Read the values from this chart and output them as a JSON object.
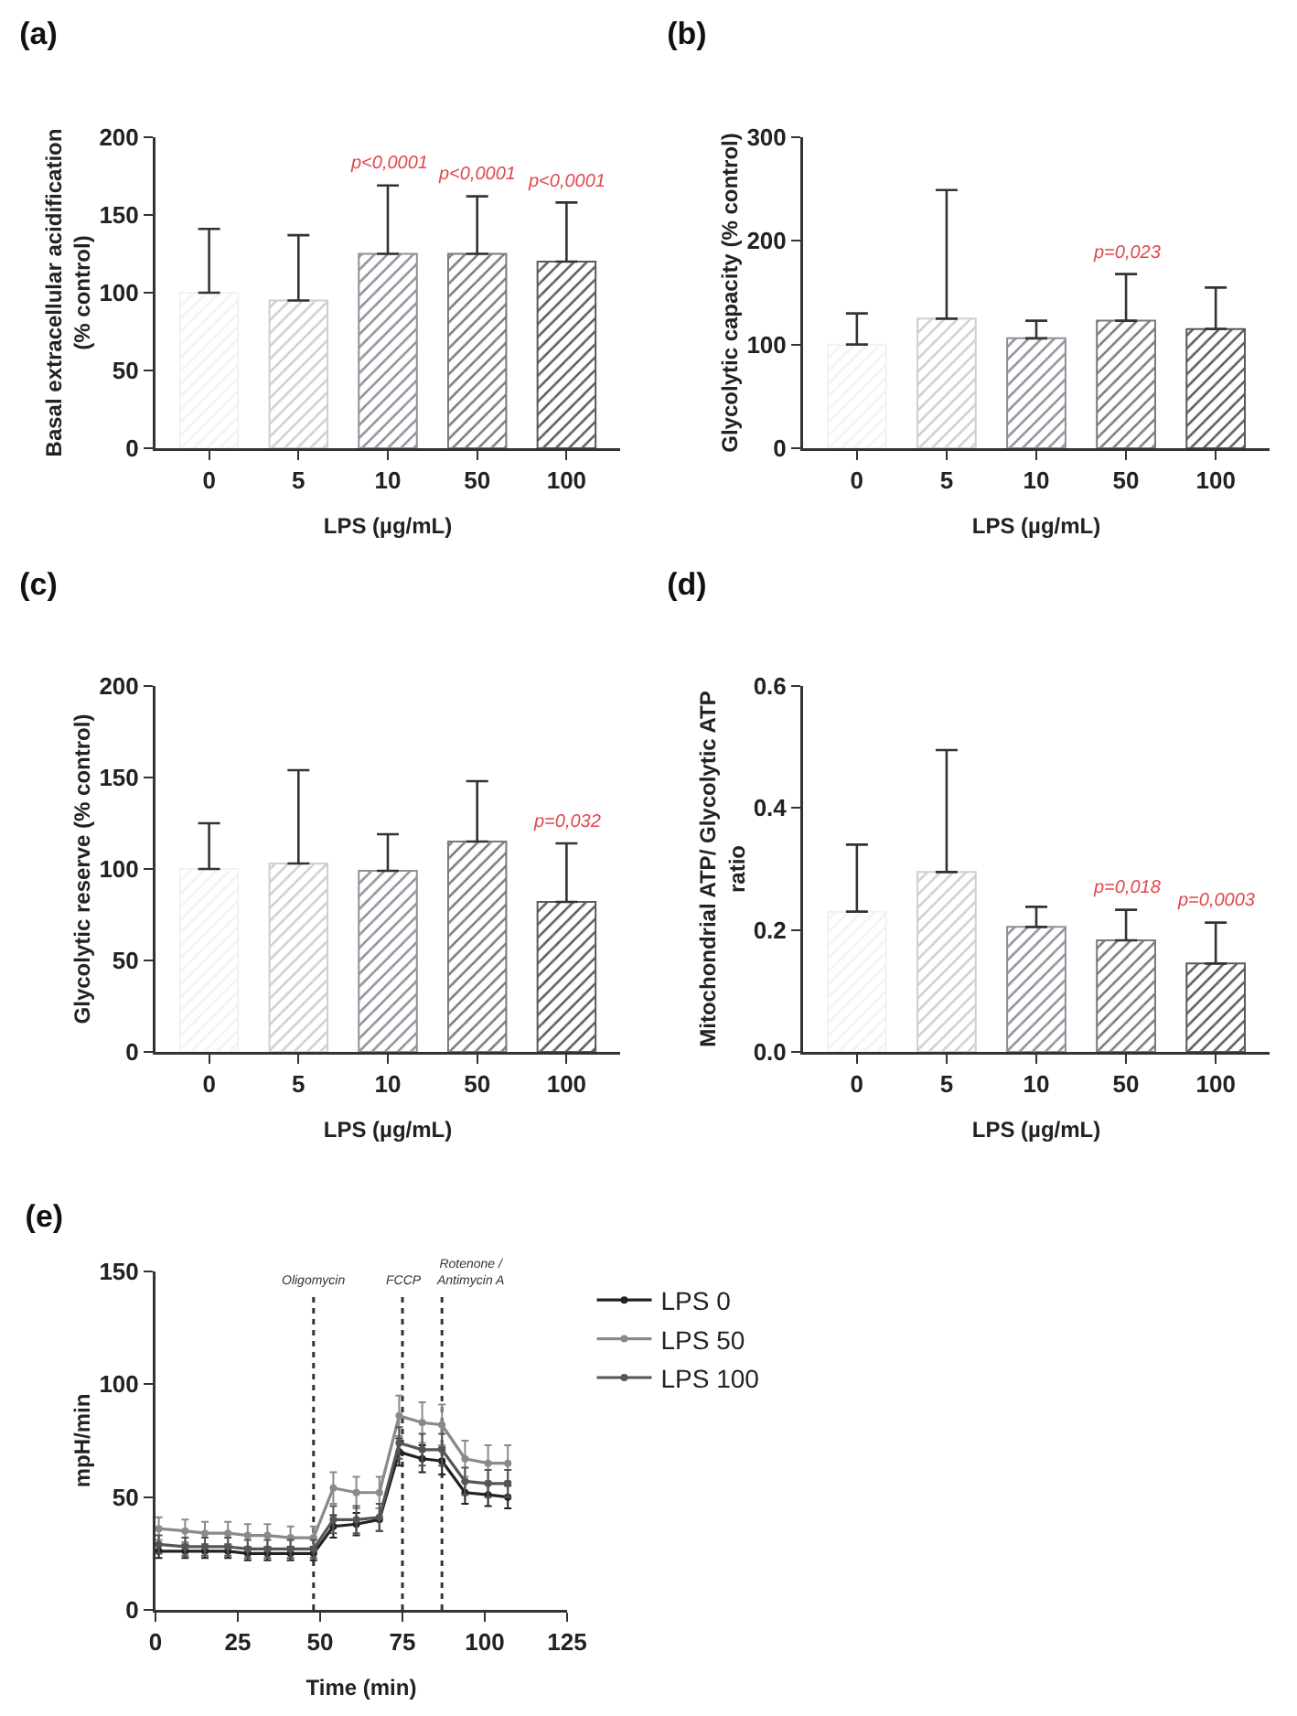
{
  "chart_data": [
    {
      "type": "bar",
      "title": "(a)",
      "xlabel": "LPS (µg/mL)",
      "ylabel": "Basal extracellular acidification\n(% control)",
      "categories": [
        "0",
        "5",
        "10",
        "50",
        "100"
      ],
      "values": [
        100,
        95,
        125,
        125,
        120
      ],
      "colors": [
        "#f2f2f2",
        "#cfcfcf",
        "#8c9199",
        "#7a7a7a",
        "#5a5a5a"
      ],
      "errors": [
        [
          100,
          141
        ],
        [
          95,
          137
        ],
        [
          125,
          169
        ],
        [
          125,
          162
        ],
        [
          120,
          158
        ]
      ],
      "ylim": [
        0,
        200
      ],
      "yticks": [
        0,
        50,
        100,
        150,
        200
      ],
      "grid": false,
      "annotations": [
        {
          "text": "p<0,0001",
          "x": "10",
          "y": 169
        },
        {
          "text": "p<0,0001",
          "x": "50",
          "y": 162
        },
        {
          "text": "p<0,0001",
          "x": "100",
          "y": 158
        }
      ]
    },
    {
      "type": "bar",
      "title": "(b)",
      "xlabel": "LPS (µg/mL)",
      "ylabel": "Glycolytic capacity (% control)",
      "categories": [
        "0",
        "5",
        "10",
        "50",
        "100"
      ],
      "values": [
        100,
        125,
        106,
        123,
        115
      ],
      "colors": [
        "#f2f2f2",
        "#cfcfcf",
        "#8c9199",
        "#7a7a7a",
        "#5a5a5a"
      ],
      "errors": [
        [
          100,
          130
        ],
        [
          125,
          249
        ],
        [
          106,
          123
        ],
        [
          123,
          168
        ],
        [
          115,
          155
        ]
      ],
      "ylim": [
        0,
        300
      ],
      "yticks": [
        0,
        100,
        200,
        300
      ],
      "grid": false,
      "annotations": [
        {
          "text": "p=0,023",
          "x": "50",
          "y": 168
        }
      ]
    },
    {
      "type": "bar",
      "title": "(c)",
      "xlabel": "LPS (µg/mL)",
      "ylabel": "Glycolytic reserve (% control)",
      "categories": [
        "0",
        "5",
        "10",
        "50",
        "100"
      ],
      "values": [
        100,
        103,
        99,
        115,
        82
      ],
      "colors": [
        "#f2f2f2",
        "#cfcfcf",
        "#8c9199",
        "#7a7a7a",
        "#5a5a5a"
      ],
      "errors": [
        [
          100,
          125
        ],
        [
          103,
          154
        ],
        [
          99,
          119
        ],
        [
          115,
          148
        ],
        [
          82,
          114
        ]
      ],
      "ylim": [
        0,
        200
      ],
      "yticks": [
        0,
        50,
        100,
        150,
        200
      ],
      "grid": false,
      "annotations": [
        {
          "text": "p=0,032",
          "x": "100",
          "y": 114
        }
      ]
    },
    {
      "type": "bar",
      "title": "(d)",
      "xlabel": "LPS (µg/mL)",
      "ylabel": "Mitochondrial ATP/ Glycolytic ATP\nratio",
      "categories": [
        "0",
        "5",
        "10",
        "50",
        "100"
      ],
      "values": [
        0.23,
        0.295,
        0.205,
        0.183,
        0.145
      ],
      "colors": [
        "#f2f2f2",
        "#cfcfcf",
        "#8c9199",
        "#7a7a7a",
        "#5a5a5a"
      ],
      "errors": [
        [
          0.23,
          0.34
        ],
        [
          0.295,
          0.495
        ],
        [
          0.205,
          0.238
        ],
        [
          0.183,
          0.233
        ],
        [
          0.145,
          0.212
        ]
      ],
      "ylim": [
        0,
        0.6
      ],
      "yticks": [
        {
          "value": 0,
          "label": "0.0"
        },
        0.2,
        0.4,
        0.6
      ],
      "grid": false,
      "annotations": [
        {
          "text": "p=0,018",
          "x": "50",
          "y": 0.233
        },
        {
          "text": "p=0,0003",
          "x": "100",
          "y": 0.212
        }
      ]
    },
    {
      "type": "line",
      "title": "(e)",
      "xlabel": "Time (min)",
      "ylabel": "mpH/min",
      "x": [
        1,
        9,
        15,
        22,
        28,
        34,
        41,
        48,
        54,
        61,
        68,
        74,
        81,
        87,
        94,
        101,
        107
      ],
      "series": [
        {
          "name": "LPS 0",
          "color": "#222222",
          "values": [
            26,
            26,
            26,
            26,
            25,
            25,
            25,
            25,
            37,
            38,
            40,
            70,
            67,
            66,
            52,
            51,
            50
          ],
          "errors": [
            3,
            3,
            3,
            3,
            3,
            3,
            3,
            3,
            5,
            5,
            5,
            6,
            6,
            6,
            5,
            5,
            5
          ]
        },
        {
          "name": "LPS 50",
          "color": "#8a8a8a",
          "values": [
            36,
            35,
            34,
            34,
            33,
            33,
            32,
            32,
            54,
            52,
            52,
            86,
            83,
            82,
            67,
            65,
            65
          ],
          "errors": [
            5,
            5,
            5,
            5,
            5,
            5,
            5,
            5,
            7,
            7,
            7,
            9,
            9,
            9,
            8,
            8,
            8
          ]
        },
        {
          "name": "LPS 100",
          "color": "#555555",
          "values": [
            29,
            28,
            28,
            28,
            27,
            27,
            27,
            27,
            40,
            40,
            41,
            74,
            71,
            71,
            57,
            56,
            56
          ],
          "errors": [
            4,
            4,
            4,
            4,
            4,
            4,
            4,
            4,
            6,
            6,
            6,
            7,
            7,
            7,
            6,
            6,
            6
          ]
        }
      ],
      "xlim": [
        0,
        125
      ],
      "xticks": [
        0,
        25,
        50,
        75,
        100,
        125
      ],
      "ylim": [
        0,
        150
      ],
      "yticks": [
        0,
        50,
        100,
        150
      ],
      "grid": false,
      "legend": "right",
      "marker": "circle",
      "line_style": "solid",
      "ref_lines": [
        {
          "axis": "x",
          "value": 48,
          "label": "Oligomycin",
          "line_style": "dotted"
        },
        {
          "axis": "x",
          "value": 75,
          "label": "FCCP",
          "line_style": "dotted"
        },
        {
          "axis": "x",
          "value": 87,
          "label": "Rotenone /\nAntimycin A",
          "line_style": "dotted"
        }
      ]
    }
  ]
}
